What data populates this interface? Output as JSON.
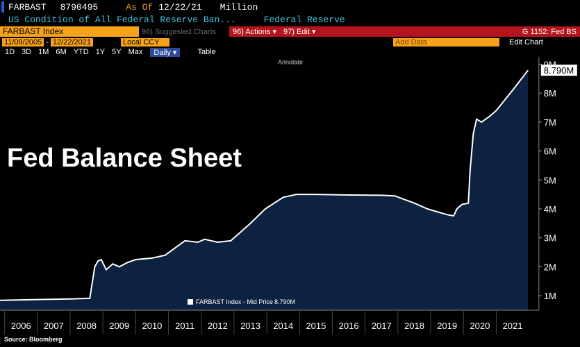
{
  "header": {
    "ticker": "FARBAST",
    "last": "8790495",
    "as_of_label": "As Of",
    "as_of": "12/22/21",
    "units": "Million",
    "description": "US Condition of All Federal Reserve Ban...",
    "source_name": "Federal Reserve",
    "security": "FARBAST Index",
    "suggested": "96) Suggested Charts",
    "actions": "96) Actions ▾",
    "edit": "97) Edit ▾",
    "page": "G 1152: Fed BS",
    "start": "11/09/2005",
    "dash": "-",
    "end": "12/22/2021",
    "currency": "Local CCY",
    "add_data": "Add Data",
    "edit_chart": "Edit Chart",
    "ranges": [
      "1D",
      "3D",
      "1M",
      "6M",
      "YTD",
      "1Y",
      "5Y",
      "Max"
    ],
    "period": "Daily ▾",
    "table": "Table",
    "annotate": "Annotate"
  },
  "chart_data": {
    "type": "area",
    "annotation": "Fed Balance Sheet",
    "source": "Source: Bloomberg",
    "x": [
      2005.86,
      2007.0,
      2008.0,
      2008.6,
      2008.75,
      2008.85,
      2008.95,
      2009.1,
      2009.3,
      2009.5,
      2009.75,
      2010.0,
      2010.5,
      2010.9,
      2011.5,
      2011.9,
      2012.1,
      2012.5,
      2012.9,
      2013.5,
      2013.95,
      2014.5,
      2014.9,
      2015.5,
      2016.5,
      2017.5,
      2017.9,
      2018.5,
      2018.9,
      2019.5,
      2019.7,
      2019.8,
      2019.95,
      2020.15,
      2020.2,
      2020.3,
      2020.4,
      2020.55,
      2020.8,
      2021.0,
      2021.5,
      2021.97
    ],
    "series": [
      {
        "name": "FARBAST Index - Mid Price",
        "color": "#ffffff",
        "fill": "#0c2240",
        "values": [
          0.84,
          0.87,
          0.89,
          0.91,
          2.0,
          2.2,
          2.25,
          1.9,
          2.1,
          2.0,
          2.15,
          2.25,
          2.3,
          2.4,
          2.9,
          2.85,
          2.95,
          2.85,
          2.9,
          3.5,
          4.0,
          4.4,
          4.5,
          4.5,
          4.48,
          4.47,
          4.45,
          4.2,
          4.0,
          3.8,
          3.76,
          4.0,
          4.15,
          4.2,
          5.3,
          6.6,
          7.1,
          7.0,
          7.2,
          7.4,
          8.1,
          8.79
        ]
      }
    ],
    "last_value": 8.79,
    "last_value_label": "8.790M",
    "xlim": [
      2005.86,
      2022.3
    ],
    "ylim": [
      0.5,
      9.25
    ],
    "xticks": [
      {
        "value": 2006.5,
        "label": "2006"
      },
      {
        "value": 2007.5,
        "label": "2007"
      },
      {
        "value": 2008.5,
        "label": "2008"
      },
      {
        "value": 2009.5,
        "label": "2009"
      },
      {
        "value": 2010.5,
        "label": "2010"
      },
      {
        "value": 2011.5,
        "label": "2011"
      },
      {
        "value": 2012.5,
        "label": "2012"
      },
      {
        "value": 2013.5,
        "label": "2013"
      },
      {
        "value": 2014.5,
        "label": "2014"
      },
      {
        "value": 2015.5,
        "label": "2015"
      },
      {
        "value": 2016.5,
        "label": "2016"
      },
      {
        "value": 2017.5,
        "label": "2017"
      },
      {
        "value": 2018.5,
        "label": "2018"
      },
      {
        "value": 2019.5,
        "label": "2019"
      },
      {
        "value": 2020.5,
        "label": "2020"
      },
      {
        "value": 2021.5,
        "label": "2021"
      }
    ],
    "yticks": [
      {
        "value": 1,
        "label": "1M"
      },
      {
        "value": 2,
        "label": "2M"
      },
      {
        "value": 3,
        "label": "3M"
      },
      {
        "value": 4,
        "label": "4M"
      },
      {
        "value": 5,
        "label": "5M"
      },
      {
        "value": 6,
        "label": "6M"
      },
      {
        "value": 7,
        "label": "7M"
      },
      {
        "value": 8,
        "label": "8M"
      },
      {
        "value": 9,
        "label": "9M"
      }
    ]
  }
}
